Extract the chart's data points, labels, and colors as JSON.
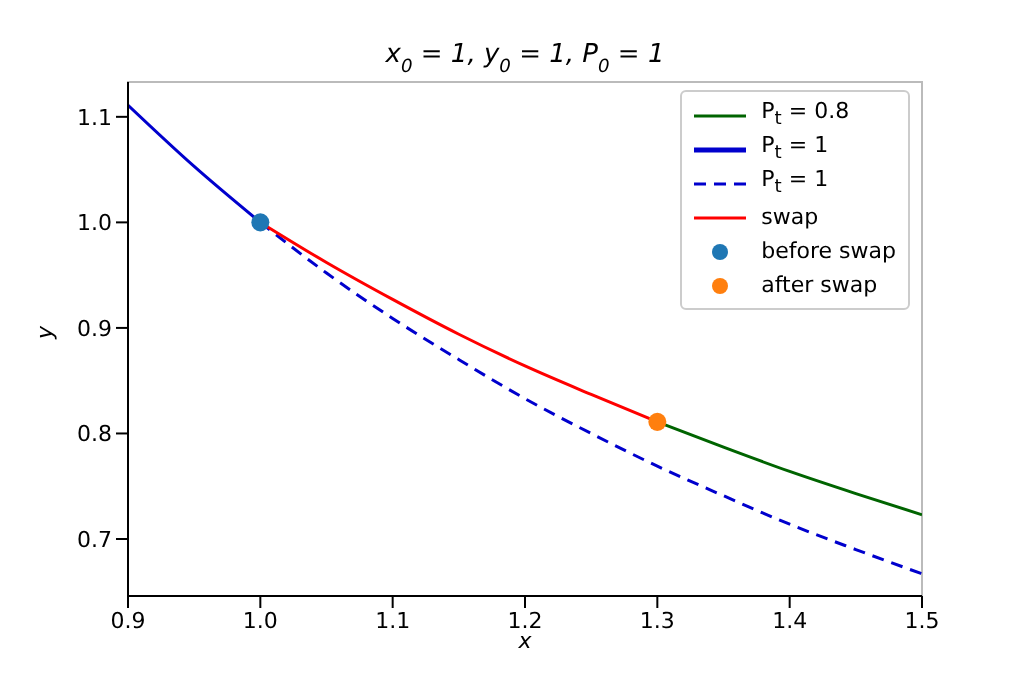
{
  "chart_data": {
    "type": "line",
    "title": "x$_{0}$ = 1, y$_{0}$ = 1, P$_{0}$ = 1",
    "xlabel": "x",
    "ylabel": "y",
    "xlim": [
      0.9,
      1.5
    ],
    "ylim": [
      0.646,
      1.133
    ],
    "xticks": [
      0.9,
      {
        "value": 1,
        "label": "1.0"
      },
      1.1,
      1.2,
      1.3,
      1.4,
      1.5
    ],
    "yticks": [
      0.7,
      0.8,
      0.9,
      {
        "value": 1,
        "label": "1.0"
      },
      1.1
    ],
    "grid": false,
    "legend": "top right",
    "series": [
      {
        "name": "P$_{t}$ = 0.8",
        "color": "#006400",
        "line_style": "solid",
        "x": [
          1.3,
          1.35,
          1.4,
          1.45,
          1.5
        ],
        "values": [
          0.811,
          0.787,
          0.764,
          0.743,
          0.723
        ]
      },
      {
        "name": "P$_{t}$ = 1",
        "color": "#0000cd",
        "line_style": "solid",
        "x": [
          0.9,
          0.95,
          1.0
        ],
        "values": [
          1.111,
          1.053,
          1.0
        ]
      },
      {
        "name": "P$_{t}$ = 1",
        "color": "#0000cd",
        "line_style": "dashed",
        "x": [
          1.0,
          1.05,
          1.1,
          1.15,
          1.2,
          1.25,
          1.3,
          1.35,
          1.4,
          1.45,
          1.5
        ],
        "values": [
          1.0,
          0.952,
          0.909,
          0.87,
          0.833,
          0.8,
          0.769,
          0.741,
          0.714,
          0.69,
          0.667
        ]
      },
      {
        "name": "swap",
        "color": "#ff0000",
        "line_style": "solid",
        "x": [
          1.0,
          1.05,
          1.1,
          1.15,
          1.2,
          1.25,
          1.3
        ],
        "values": [
          1.0,
          0.962,
          0.927,
          0.894,
          0.864,
          0.837,
          0.811
        ]
      },
      {
        "name": "before swap",
        "type": "scatter",
        "marker": "circle",
        "color": "#1f77b4",
        "x": [
          1.0
        ],
        "values": [
          1.0
        ]
      },
      {
        "name": "after swap",
        "type": "scatter",
        "marker": "circle",
        "color": "#ff7f0e",
        "x": [
          1.3
        ],
        "values": [
          0.811
        ]
      }
    ]
  }
}
